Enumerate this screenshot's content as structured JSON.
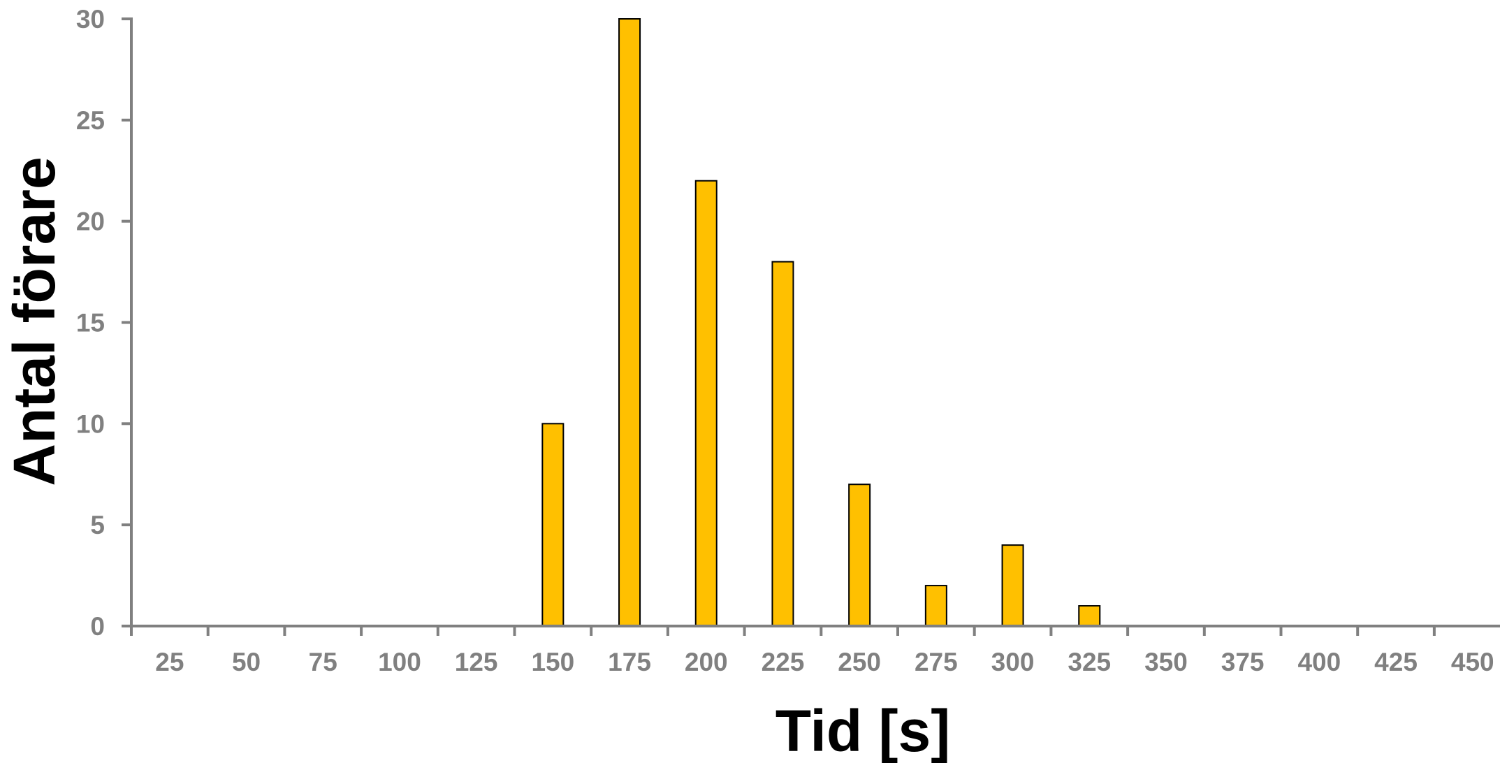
{
  "chart_data": {
    "type": "bar",
    "xlabel": "Tid [s]",
    "ylabel": "Antal förare",
    "categories": [
      "25",
      "50",
      "75",
      "100",
      "125",
      "150",
      "175",
      "200",
      "225",
      "250",
      "275",
      "300",
      "325",
      "350",
      "375",
      "400",
      "425",
      "450"
    ],
    "values": [
      0,
      0,
      0,
      0,
      0,
      10,
      30,
      22,
      18,
      7,
      2,
      4,
      1,
      0,
      0,
      0,
      0,
      0
    ],
    "y_ticks": [
      "0",
      "5",
      "10",
      "15",
      "20",
      "25",
      "30"
    ],
    "ylim": [
      0,
      30
    ],
    "grid": false,
    "legend": "none",
    "colors": {
      "bar_fill": "#FFC000",
      "bar_stroke": "#000000",
      "axis": "#808080",
      "tick_text": "#808080",
      "title_text": "#000000"
    }
  }
}
